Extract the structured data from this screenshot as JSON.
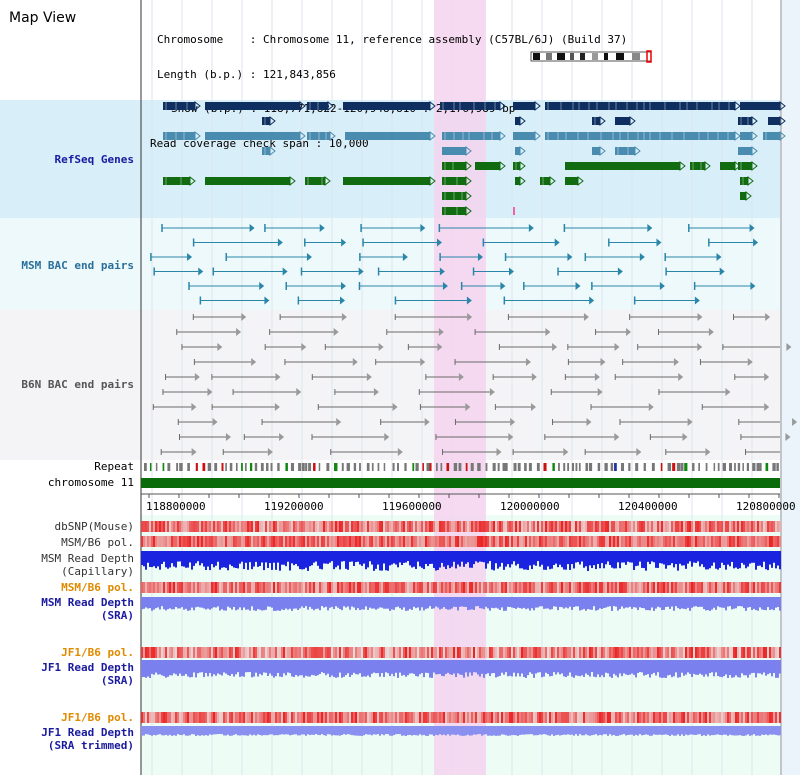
{
  "page_title": "Map View",
  "info": {
    "chromosome_label": "Chromosome",
    "chromosome_value": "Chromosome 11, reference assembly (C57BL/6J) (Build 37)",
    "length_label": "Length (b.p.)",
    "length_value": "121,843,856",
    "show_label": "Show (b.p.)",
    "show_value": "118,771,822-120,948,810 : 2,176,989 bp",
    "read_span_label": "Read coverage check span",
    "read_span_value": "10,000"
  },
  "tracks": {
    "refseq": "RefSeq Genes",
    "msm_bac": "MSM BAC end pairs",
    "b6n_bac": "B6N BAC end pairs",
    "repeat": "Repeat",
    "chromosome": "chromosome 11",
    "dbsnp": "dbSNP(Mouse)",
    "msm_b6_pol_1": "MSM/B6 pol.",
    "msm_read_depth_cap_1": "MSM Read Depth",
    "msm_read_depth_cap_2": "(Capillary)",
    "msm_b6_pol_2": "MSM/B6 pol.",
    "msm_read_depth_sra_1": "MSM Read Depth",
    "msm_read_depth_sra_2": "(SRA)",
    "jf1_b6_pol_1": "JF1/B6 pol.",
    "jf1_read_depth_sra_1": "JF1 Read Depth",
    "jf1_read_depth_sra_2": "(SRA)",
    "jf1_b6_pol_2": "JF1/B6 pol.",
    "jf1_read_depth_trim_1": "JF1 Read Depth",
    "jf1_read_depth_trim_2": "(SRA trimmed)"
  },
  "axis": {
    "ticks": [
      "118800000",
      "119200000",
      "119600000",
      "120000000",
      "120400000",
      "120800000"
    ]
  },
  "colors": {
    "refseq_bg": "#d8eef8",
    "msm_bg": "#eef9fb",
    "b6n_bg": "#f4f4f6",
    "highlight": "#f5d3ef",
    "gene_dark": "#0e2f5f",
    "gene_mid": "#4a8bb0",
    "gene_green": "#116b11",
    "msm_pair": "#2a86a8",
    "b6n_pair": "#6a6a6a",
    "chromosome_bar": "#0a6b0a",
    "label_blue": "#1a1aa0",
    "label_teal": "#2a6f9a",
    "label_orange": "#e08a00"
  }
}
